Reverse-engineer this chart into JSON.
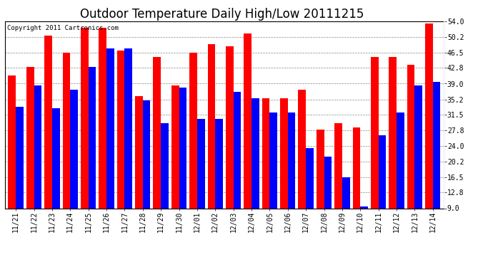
{
  "title": "Outdoor Temperature Daily High/Low 20111215",
  "copyright_text": "Copyright 2011 Cartronics.com",
  "categories": [
    "11/21",
    "11/22",
    "11/23",
    "11/24",
    "11/25",
    "11/26",
    "11/27",
    "11/28",
    "11/29",
    "11/30",
    "12/01",
    "12/02",
    "12/03",
    "12/04",
    "12/05",
    "12/06",
    "12/07",
    "12/08",
    "12/09",
    "12/10",
    "12/11",
    "12/12",
    "12/13",
    "12/14"
  ],
  "highs": [
    41.0,
    43.0,
    50.5,
    46.5,
    52.5,
    52.5,
    47.0,
    36.0,
    45.5,
    38.5,
    46.5,
    48.5,
    48.0,
    51.0,
    35.5,
    35.5,
    37.5,
    28.0,
    29.5,
    28.5,
    45.5,
    45.5,
    43.5,
    53.5
  ],
  "lows": [
    33.5,
    38.5,
    33.0,
    37.5,
    43.0,
    47.5,
    47.5,
    35.0,
    29.5,
    38.0,
    30.5,
    30.5,
    37.0,
    35.5,
    32.0,
    32.0,
    23.5,
    21.5,
    16.5,
    9.5,
    26.5,
    32.0,
    38.5,
    39.5
  ],
  "high_color": "#ff0000",
  "low_color": "#0000ff",
  "background_color": "#ffffff",
  "plot_background": "#ffffff",
  "ylim": [
    9.0,
    54.0
  ],
  "yticks": [
    9.0,
    12.8,
    16.5,
    20.2,
    24.0,
    27.8,
    31.5,
    35.2,
    39.0,
    42.8,
    46.5,
    50.2,
    54.0
  ],
  "grid_color": "#888888",
  "bar_width": 0.42,
  "title_fontsize": 12,
  "tick_fontsize": 7,
  "copyright_fontsize": 6.5
}
